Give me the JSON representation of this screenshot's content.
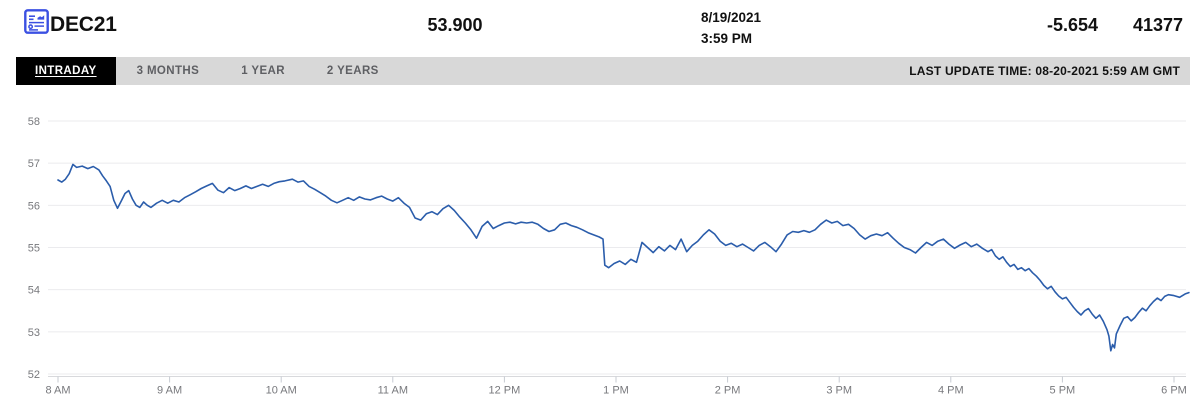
{
  "header": {
    "symbol": "DEC21",
    "price": "53.900",
    "date": "8/19/2021",
    "time": "3:59 PM",
    "change": "-5.654",
    "volume": "41377"
  },
  "tabs": [
    {
      "label": "INTRADAY",
      "active": true
    },
    {
      "label": "3 MONTHS",
      "active": false
    },
    {
      "label": "1 YEAR",
      "active": false
    },
    {
      "label": "2 YEARS",
      "active": false
    }
  ],
  "last_update": "LAST UPDATE TIME: 08-20-2021 5:59 AM GMT",
  "icons": {
    "header_icon": "report-chart-icon"
  },
  "colors": {
    "accent_blue": "#3b50e2",
    "line": "#2b5dab",
    "grid": "#ebebee",
    "axis_line": "#d8d9dc",
    "tick": "#c7cbd2",
    "axis_text": "#77787c",
    "tab_bg": "#d8d8d8",
    "tab_active_bg": "#000000",
    "tab_active_text": "#ffffff",
    "tab_text": "#5e5f63"
  },
  "chart_data": {
    "type": "line",
    "ylim": [
      52,
      58
    ],
    "y_ticks": [
      58,
      57,
      56,
      55,
      54,
      53,
      52
    ],
    "x_ticks": [
      "8 AM",
      "9 AM",
      "10 AM",
      "11 AM",
      "12 PM",
      "1 PM",
      "2 PM",
      "3 PM",
      "4 PM",
      "5 PM",
      "6 PM"
    ],
    "x_range_minutes": [
      0,
      600
    ],
    "grid": "horizontal",
    "legend": "none",
    "series": [
      {
        "name": "DEC21",
        "color": "#2b5dab",
        "points": [
          [
            0,
            56.6
          ],
          [
            2,
            56.55
          ],
          [
            4,
            56.62
          ],
          [
            6,
            56.75
          ],
          [
            8,
            56.97
          ],
          [
            10,
            56.9
          ],
          [
            13,
            56.93
          ],
          [
            16,
            56.87
          ],
          [
            19,
            56.92
          ],
          [
            22,
            56.84
          ],
          [
            24,
            56.7
          ],
          [
            26,
            56.58
          ],
          [
            28,
            56.45
          ],
          [
            30,
            56.12
          ],
          [
            32,
            55.93
          ],
          [
            34,
            56.1
          ],
          [
            36,
            56.28
          ],
          [
            38,
            56.35
          ],
          [
            40,
            56.15
          ],
          [
            42,
            56.0
          ],
          [
            44,
            55.95
          ],
          [
            46,
            56.08
          ],
          [
            48,
            56.0
          ],
          [
            50,
            55.95
          ],
          [
            53,
            56.05
          ],
          [
            56,
            56.12
          ],
          [
            59,
            56.05
          ],
          [
            62,
            56.12
          ],
          [
            65,
            56.08
          ],
          [
            68,
            56.18
          ],
          [
            71,
            56.25
          ],
          [
            74,
            56.32
          ],
          [
            77,
            56.4
          ],
          [
            80,
            56.46
          ],
          [
            83,
            56.52
          ],
          [
            86,
            56.36
          ],
          [
            89,
            56.3
          ],
          [
            92,
            56.42
          ],
          [
            95,
            56.35
          ],
          [
            98,
            56.4
          ],
          [
            101,
            56.46
          ],
          [
            104,
            56.4
          ],
          [
            107,
            56.45
          ],
          [
            110,
            56.5
          ],
          [
            113,
            56.45
          ],
          [
            116,
            56.52
          ],
          [
            119,
            56.56
          ],
          [
            122,
            56.58
          ],
          [
            126,
            56.62
          ],
          [
            129,
            56.55
          ],
          [
            132,
            56.58
          ],
          [
            135,
            56.45
          ],
          [
            138,
            56.38
          ],
          [
            141,
            56.3
          ],
          [
            144,
            56.22
          ],
          [
            147,
            56.12
          ],
          [
            150,
            56.06
          ],
          [
            153,
            56.12
          ],
          [
            156,
            56.18
          ],
          [
            159,
            56.12
          ],
          [
            162,
            56.2
          ],
          [
            165,
            56.15
          ],
          [
            168,
            56.13
          ],
          [
            171,
            56.18
          ],
          [
            174,
            56.22
          ],
          [
            177,
            56.15
          ],
          [
            180,
            56.1
          ],
          [
            183,
            56.18
          ],
          [
            186,
            56.05
          ],
          [
            189,
            55.95
          ],
          [
            192,
            55.7
          ],
          [
            195,
            55.65
          ],
          [
            198,
            55.8
          ],
          [
            201,
            55.85
          ],
          [
            204,
            55.78
          ],
          [
            207,
            55.92
          ],
          [
            210,
            56.0
          ],
          [
            213,
            55.88
          ],
          [
            216,
            55.72
          ],
          [
            219,
            55.58
          ],
          [
            222,
            55.42
          ],
          [
            225,
            55.22
          ],
          [
            228,
            55.5
          ],
          [
            231,
            55.62
          ],
          [
            234,
            55.45
          ],
          [
            237,
            55.52
          ],
          [
            240,
            55.58
          ],
          [
            243,
            55.6
          ],
          [
            246,
            55.56
          ],
          [
            249,
            55.6
          ],
          [
            252,
            55.58
          ],
          [
            255,
            55.6
          ],
          [
            258,
            55.55
          ],
          [
            261,
            55.45
          ],
          [
            264,
            55.38
          ],
          [
            267,
            55.42
          ],
          [
            270,
            55.55
          ],
          [
            273,
            55.58
          ],
          [
            276,
            55.52
          ],
          [
            279,
            55.48
          ],
          [
            282,
            55.42
          ],
          [
            285,
            55.35
          ],
          [
            288,
            55.3
          ],
          [
            291,
            55.25
          ],
          [
            293,
            55.2
          ],
          [
            294,
            54.58
          ],
          [
            296,
            54.52
          ],
          [
            299,
            54.62
          ],
          [
            302,
            54.68
          ],
          [
            305,
            54.6
          ],
          [
            308,
            54.72
          ],
          [
            311,
            54.65
          ],
          [
            314,
            55.12
          ],
          [
            317,
            55.0
          ],
          [
            320,
            54.88
          ],
          [
            323,
            55.02
          ],
          [
            326,
            54.92
          ],
          [
            329,
            55.05
          ],
          [
            332,
            54.95
          ],
          [
            335,
            55.2
          ],
          [
            338,
            54.9
          ],
          [
            341,
            55.05
          ],
          [
            344,
            55.15
          ],
          [
            347,
            55.3
          ],
          [
            350,
            55.42
          ],
          [
            353,
            55.32
          ],
          [
            356,
            55.15
          ],
          [
            359,
            55.05
          ],
          [
            362,
            55.1
          ],
          [
            365,
            55.02
          ],
          [
            368,
            55.08
          ],
          [
            371,
            55.0
          ],
          [
            374,
            54.92
          ],
          [
            377,
            55.05
          ],
          [
            380,
            55.12
          ],
          [
            383,
            55.02
          ],
          [
            386,
            54.9
          ],
          [
            389,
            55.08
          ],
          [
            392,
            55.3
          ],
          [
            395,
            55.38
          ],
          [
            398,
            55.36
          ],
          [
            401,
            55.4
          ],
          [
            404,
            55.36
          ],
          [
            407,
            55.42
          ],
          [
            410,
            55.55
          ],
          [
            413,
            55.65
          ],
          [
            416,
            55.58
          ],
          [
            419,
            55.62
          ],
          [
            422,
            55.52
          ],
          [
            425,
            55.55
          ],
          [
            428,
            55.45
          ],
          [
            431,
            55.3
          ],
          [
            434,
            55.2
          ],
          [
            437,
            55.28
          ],
          [
            440,
            55.32
          ],
          [
            443,
            55.28
          ],
          [
            446,
            55.35
          ],
          [
            449,
            55.22
          ],
          [
            452,
            55.1
          ],
          [
            455,
            55.0
          ],
          [
            458,
            54.95
          ],
          [
            461,
            54.87
          ],
          [
            464,
            55.0
          ],
          [
            467,
            55.12
          ],
          [
            470,
            55.05
          ],
          [
            473,
            55.15
          ],
          [
            476,
            55.2
          ],
          [
            479,
            55.08
          ],
          [
            482,
            54.98
          ],
          [
            485,
            55.06
          ],
          [
            488,
            55.12
          ],
          [
            491,
            55.02
          ],
          [
            494,
            55.08
          ],
          [
            497,
            54.98
          ],
          [
            500,
            54.9
          ],
          [
            502,
            54.95
          ],
          [
            504,
            54.8
          ],
          [
            506,
            54.72
          ],
          [
            508,
            54.78
          ],
          [
            510,
            54.65
          ],
          [
            512,
            54.55
          ],
          [
            514,
            54.6
          ],
          [
            516,
            54.48
          ],
          [
            518,
            54.52
          ],
          [
            520,
            54.45
          ],
          [
            522,
            54.5
          ],
          [
            524,
            54.4
          ],
          [
            526,
            54.32
          ],
          [
            528,
            54.22
          ],
          [
            530,
            54.1
          ],
          [
            532,
            54.02
          ],
          [
            534,
            54.08
          ],
          [
            536,
            53.95
          ],
          [
            538,
            53.85
          ],
          [
            540,
            53.78
          ],
          [
            542,
            53.82
          ],
          [
            544,
            53.7
          ],
          [
            546,
            53.58
          ],
          [
            548,
            53.48
          ],
          [
            550,
            53.4
          ],
          [
            552,
            53.5
          ],
          [
            554,
            53.55
          ],
          [
            556,
            53.42
          ],
          [
            558,
            53.32
          ],
          [
            560,
            53.4
          ],
          [
            562,
            53.25
          ],
          [
            564,
            53.05
          ],
          [
            565,
            52.9
          ],
          [
            566,
            52.55
          ],
          [
            567,
            52.7
          ],
          [
            568,
            52.62
          ],
          [
            569,
            52.95
          ],
          [
            571,
            53.15
          ],
          [
            573,
            53.32
          ],
          [
            575,
            53.36
          ],
          [
            577,
            53.26
          ],
          [
            579,
            53.34
          ],
          [
            581,
            53.46
          ],
          [
            583,
            53.56
          ],
          [
            585,
            53.5
          ],
          [
            587,
            53.62
          ],
          [
            589,
            53.72
          ],
          [
            591,
            53.8
          ],
          [
            593,
            53.74
          ],
          [
            595,
            53.84
          ],
          [
            597,
            53.88
          ],
          [
            600,
            53.86
          ],
          [
            603,
            53.82
          ],
          [
            606,
            53.9
          ],
          [
            608,
            53.93
          ]
        ]
      }
    ]
  }
}
